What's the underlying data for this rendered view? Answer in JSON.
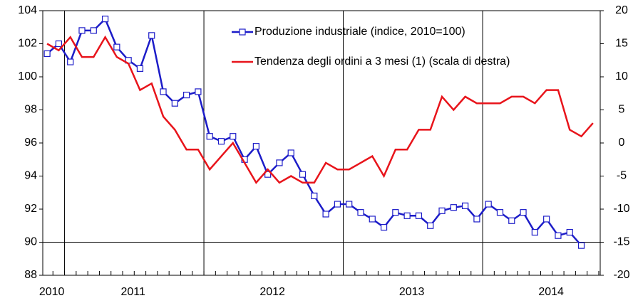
{
  "chart_data": {
    "type": "line",
    "categories": [
      "2010",
      null,
      null,
      null,
      null,
      null,
      null,
      "2011",
      null,
      null,
      null,
      null,
      null,
      null,
      null,
      null,
      null,
      null,
      null,
      "2012",
      null,
      null,
      null,
      null,
      null,
      null,
      null,
      null,
      null,
      null,
      null,
      "2013",
      null,
      null,
      null,
      null,
      null,
      null,
      null,
      null,
      null,
      null,
      null,
      "2014",
      null,
      null,
      null,
      null
    ],
    "series": [
      {
        "name": "Produzione industriale (indice, 2010=100)",
        "color": "#1c1cc8",
        "marker": "square",
        "axis": "y",
        "values": [
          101.4,
          102.0,
          100.9,
          102.8,
          102.8,
          103.5,
          101.8,
          101.0,
          100.5,
          102.5,
          99.1,
          98.4,
          98.9,
          99.1,
          96.4,
          96.1,
          96.4,
          95.0,
          95.8,
          94.1,
          94.8,
          95.4,
          94.1,
          92.8,
          91.7,
          92.3,
          92.3,
          91.8,
          91.4,
          90.9,
          91.8,
          91.6,
          91.6,
          91.0,
          91.9,
          92.1,
          92.2,
          91.4,
          92.3,
          91.8,
          91.3,
          91.8,
          90.6,
          91.4,
          90.4,
          90.6,
          89.8,
          null
        ]
      },
      {
        "name": "Tendenza degli ordini a 3 mesi (1) (scala di destra)",
        "color": "#e8141b",
        "axis": "y2",
        "values": [
          15,
          14,
          16,
          13,
          13,
          16,
          13,
          12,
          8,
          9,
          4,
          2,
          -1,
          -1,
          -4,
          -2,
          0,
          -3,
          -6,
          -4,
          -6,
          -5,
          -6,
          -6,
          -3,
          -4,
          -4,
          -3,
          -2,
          -5,
          -1,
          -1,
          2,
          2,
          7,
          5,
          7,
          6,
          6,
          6,
          7,
          7,
          6,
          8,
          8,
          2,
          1,
          3
        ]
      }
    ],
    "ylim": [
      88,
      104
    ],
    "yticks": [
      88,
      90,
      92,
      94,
      96,
      98,
      100,
      102,
      104
    ],
    "y2lim": [
      -20,
      20
    ],
    "y2ticks": [
      -20,
      -15,
      -10,
      -5,
      0,
      5,
      10,
      15,
      20
    ],
    "reference_line": 90
  }
}
